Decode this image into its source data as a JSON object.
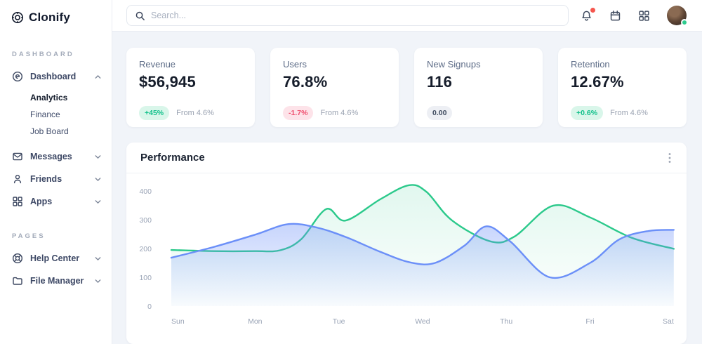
{
  "brand": {
    "name": "Clonify",
    "logo_icon": "clonify-logo-icon"
  },
  "sidebar": {
    "sections": [
      {
        "label": "DASHBOARD",
        "items": [
          {
            "label": "Dashboard",
            "icon": "dashboard-icon",
            "chevron": "up",
            "expanded": true,
            "children": [
              {
                "label": "Analytics",
                "active": true
              },
              {
                "label": "Finance",
                "active": false
              },
              {
                "label": "Job Board",
                "active": false
              }
            ]
          },
          {
            "label": "Messages",
            "icon": "mail-icon",
            "chevron": "down"
          },
          {
            "label": "Friends",
            "icon": "user-icon",
            "chevron": "down"
          },
          {
            "label": "Apps",
            "icon": "grid-icon",
            "chevron": "down"
          }
        ]
      },
      {
        "label": "PAGES",
        "items": [
          {
            "label": "Help Center",
            "icon": "help-icon",
            "chevron": "down"
          },
          {
            "label": "File Manager",
            "icon": "folder-icon",
            "chevron": "down"
          }
        ]
      }
    ]
  },
  "topbar": {
    "search_placeholder": "Search...",
    "icons": [
      "search-icon",
      "bell-icon",
      "calendar-icon",
      "apps-icon"
    ],
    "bell_has_notification": true,
    "avatar_status_color": "#2ecb8e"
  },
  "stats": [
    {
      "label": "Revenue",
      "value": "$56,945",
      "badge": "+45%",
      "badge_type": "up",
      "note": "From 4.6%"
    },
    {
      "label": "Users",
      "value": "76.8%",
      "badge": "-1.7%",
      "badge_type": "down",
      "note": "From 4.6%"
    },
    {
      "label": "New Signups",
      "value": "116",
      "badge": "0.00",
      "badge_type": "neutral",
      "note": ""
    },
    {
      "label": "Retention",
      "value": "12.67%",
      "badge": "+0.6%",
      "badge_type": "up",
      "note": "From 4.6%"
    }
  ],
  "badge_colors": {
    "up": {
      "text": "#10c08a",
      "bg": "#d9f6ea"
    },
    "down": {
      "text": "#ef4e6e",
      "bg": "#fde3e9"
    },
    "neutral": {
      "text": "#3e4a5e",
      "bg": "#edeff4"
    }
  },
  "performance": {
    "title": "Performance",
    "menu_icon": "kebab-menu-icon"
  },
  "chart_data": {
    "type": "area",
    "title": "Performance",
    "x_labels": [
      "Sun",
      "Mon",
      "Tue",
      "Wed",
      "Thu",
      "Fri",
      "Sat"
    ],
    "y_ticks": [
      0,
      100,
      200,
      300,
      400
    ],
    "ylim": [
      0,
      460
    ],
    "grid": false,
    "legend": false,
    "series": [
      {
        "name": "series-green",
        "color": "#2bc98b",
        "fill_from": "rgba(43,201,139,0.14)",
        "fill_to": "rgba(43,201,139,0.01)",
        "points": [
          [
            0,
            195
          ],
          [
            0.5,
            191
          ],
          [
            1,
            191
          ],
          [
            1.3,
            194
          ],
          [
            1.55,
            232
          ],
          [
            1.85,
            337
          ],
          [
            2.08,
            297
          ],
          [
            2.5,
            372
          ],
          [
            2.84,
            420
          ],
          [
            3.05,
            396
          ],
          [
            3.35,
            298
          ],
          [
            3.81,
            225
          ],
          [
            4.1,
            242
          ],
          [
            4.56,
            349
          ],
          [
            5,
            308
          ],
          [
            5.5,
            237
          ],
          [
            6,
            199
          ]
        ]
      },
      {
        "name": "series-blue",
        "color": "#6b8ff8",
        "fill_from": "rgba(107,143,248,0.38)",
        "fill_to": "rgba(107,143,248,0.03)",
        "points": [
          [
            0,
            168
          ],
          [
            0.5,
            205
          ],
          [
            1,
            248
          ],
          [
            1.4,
            285
          ],
          [
            1.75,
            272
          ],
          [
            2.1,
            238
          ],
          [
            2.5,
            188
          ],
          [
            2.85,
            152
          ],
          [
            3.15,
            150
          ],
          [
            3.5,
            210
          ],
          [
            3.76,
            277
          ],
          [
            4.05,
            224
          ],
          [
            4.52,
            100
          ],
          [
            5,
            150
          ],
          [
            5.35,
            232
          ],
          [
            5.7,
            261
          ],
          [
            6,
            265
          ]
        ]
      }
    ]
  }
}
